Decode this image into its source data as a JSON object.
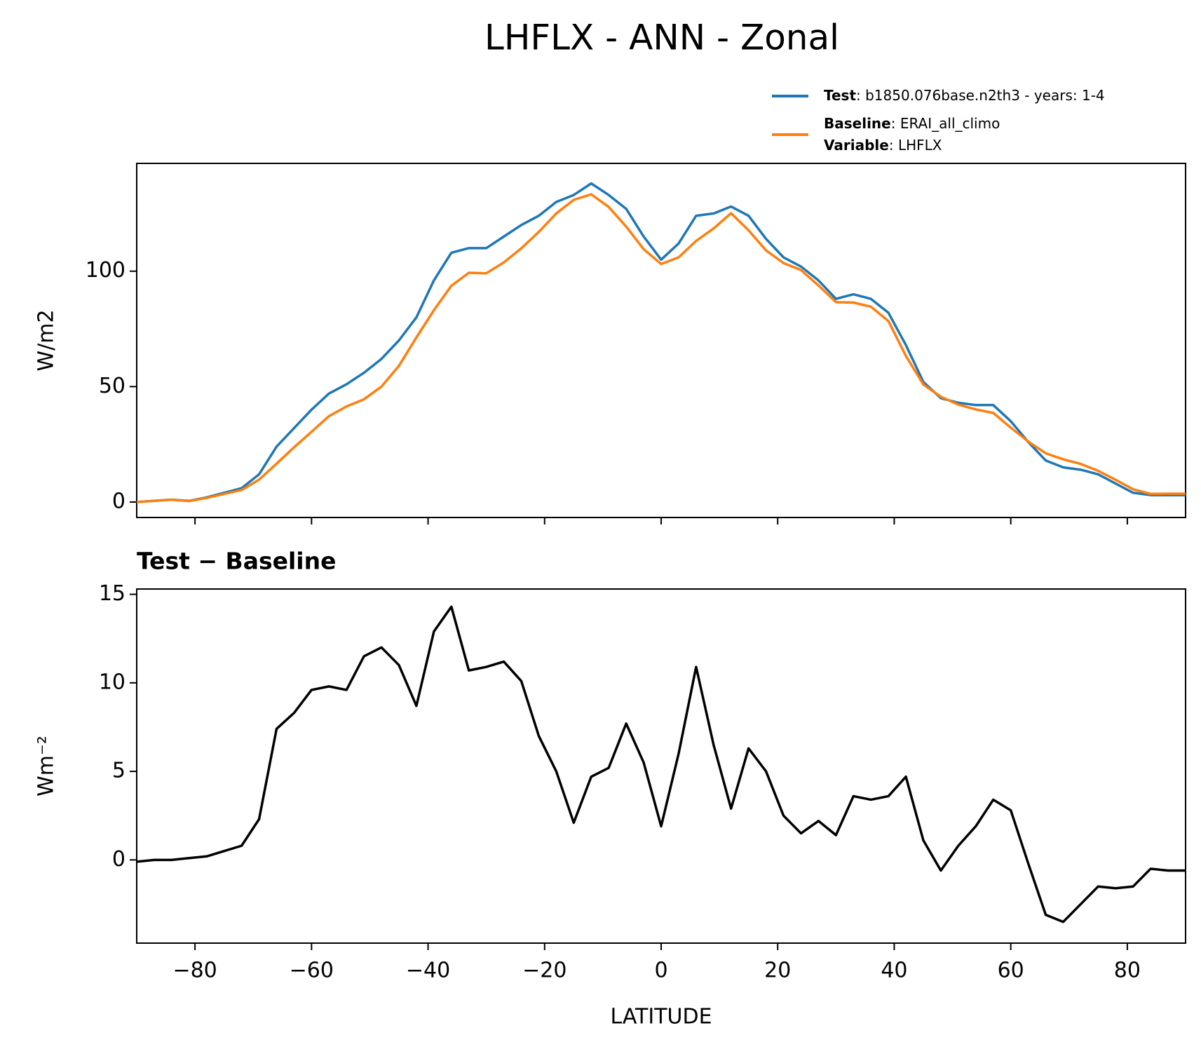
{
  "title": "LHFLX - ANN - Zonal",
  "chart_data": [
    {
      "type": "line",
      "ylabel": "W/m2",
      "x": [
        -90,
        -87,
        -84,
        -81,
        -78,
        -75,
        -72,
        -69,
        -66,
        -63,
        -60,
        -57,
        -54,
        -51,
        -48,
        -45,
        -42,
        -39,
        -36,
        -33,
        -30,
        -27,
        -24,
        -21,
        -18,
        -15,
        -12,
        -9,
        -6,
        -3,
        0,
        3,
        6,
        9,
        12,
        15,
        18,
        21,
        24,
        27,
        30,
        33,
        36,
        39,
        42,
        45,
        48,
        51,
        54,
        57,
        60,
        63,
        66,
        69,
        72,
        75,
        78,
        81,
        84,
        87,
        90
      ],
      "series": [
        {
          "name": "Test",
          "case": ": b1850.076base.n2th3 - years: 1-4",
          "color": "#1f77b4",
          "values": [
            0,
            0.5,
            1,
            0.5,
            2,
            4,
            6,
            12,
            24,
            32,
            40,
            47,
            51,
            56,
            62,
            70,
            80,
            96,
            108,
            110,
            110,
            115,
            120,
            124,
            130,
            133,
            138,
            133,
            127,
            115,
            105,
            112,
            124,
            125,
            128,
            124,
            114,
            106,
            102,
            96,
            88,
            90,
            88,
            82,
            68,
            52,
            45,
            43,
            42,
            42,
            35,
            26,
            18,
            15,
            14,
            12,
            8,
            4,
            3,
            3,
            3
          ]
        },
        {
          "name": "Baseline",
          "case": ": ERAI_all_climo",
          "variable_label": "Variable",
          "variable": ": LHFLX",
          "color": "#ff7f0e",
          "values": [
            0,
            0.5,
            1,
            0.4,
            1.8,
            3.5,
            5.2,
            9.7,
            16.6,
            23.7,
            30.4,
            37.2,
            41.4,
            44.5,
            50,
            59,
            71.3,
            83.1,
            93.7,
            99.3,
            99.1,
            103.8,
            109.9,
            117,
            125,
            130.9,
            133.3,
            127.8,
            119.3,
            109.5,
            103.1,
            106,
            113.1,
            118.5,
            125.1,
            117.7,
            109,
            103.5,
            100.5,
            93.8,
            86.6,
            86.4,
            84.6,
            78.4,
            63.3,
            50.9,
            45.6,
            42.2,
            40.1,
            38.6,
            32.2,
            26.2,
            21.1,
            18.5,
            16.5,
            13.5,
            9.6,
            5.5,
            3.5,
            3.6,
            3.6
          ]
        }
      ],
      "xlim": [
        -90,
        90
      ],
      "xticks": [
        -80,
        -60,
        -40,
        -20,
        0,
        20,
        40,
        60,
        80
      ],
      "ylim": [
        -6.7,
        146.7
      ],
      "yticks": [
        0,
        50,
        100
      ]
    },
    {
      "type": "line",
      "title": "Test − Baseline",
      "ylabel": "Wm⁻²",
      "xlabel": "LATITUDE",
      "x": [
        -90,
        -87,
        -84,
        -81,
        -78,
        -75,
        -72,
        -69,
        -66,
        -63,
        -60,
        -57,
        -54,
        -51,
        -48,
        -45,
        -42,
        -39,
        -36,
        -33,
        -30,
        -27,
        -24,
        -21,
        -18,
        -15,
        -12,
        -9,
        -6,
        -3,
        0,
        3,
        6,
        9,
        12,
        15,
        18,
        21,
        24,
        27,
        30,
        33,
        36,
        39,
        42,
        45,
        48,
        51,
        54,
        57,
        60,
        63,
        66,
        69,
        72,
        75,
        78,
        81,
        84,
        87,
        90
      ],
      "series": [
        {
          "color": "#000000",
          "values": [
            -0.1,
            0,
            0,
            0.1,
            0.2,
            0.5,
            0.8,
            2.3,
            7.4,
            8.3,
            9.6,
            9.8,
            9.6,
            11.5,
            12,
            11,
            8.7,
            12.9,
            14.3,
            10.7,
            10.9,
            11.2,
            10.1,
            7,
            5,
            2.1,
            4.7,
            5.2,
            7.7,
            5.5,
            1.9,
            6,
            10.9,
            6.5,
            2.9,
            6.3,
            5,
            2.5,
            1.5,
            2.2,
            1.4,
            3.6,
            3.4,
            3.6,
            4.7,
            1.1,
            -0.6,
            0.8,
            1.9,
            3.4,
            2.8,
            -0.2,
            -3.1,
            -3.5,
            -2.5,
            -1.5,
            -1.6,
            -1.5,
            -0.5,
            -0.6,
            -0.6
          ]
        }
      ],
      "xlim": [
        -90,
        90
      ],
      "xticks": [
        {
          "value": -80,
          "label": "−80"
        },
        {
          "value": -60,
          "label": "−60"
        },
        {
          "value": -40,
          "label": "−40"
        },
        {
          "value": -20,
          "label": "−20"
        },
        0,
        20,
        40,
        60,
        80
      ],
      "ylim": [
        -4.7,
        15.3
      ],
      "yticks": [
        0,
        5,
        10,
        15
      ]
    }
  ]
}
